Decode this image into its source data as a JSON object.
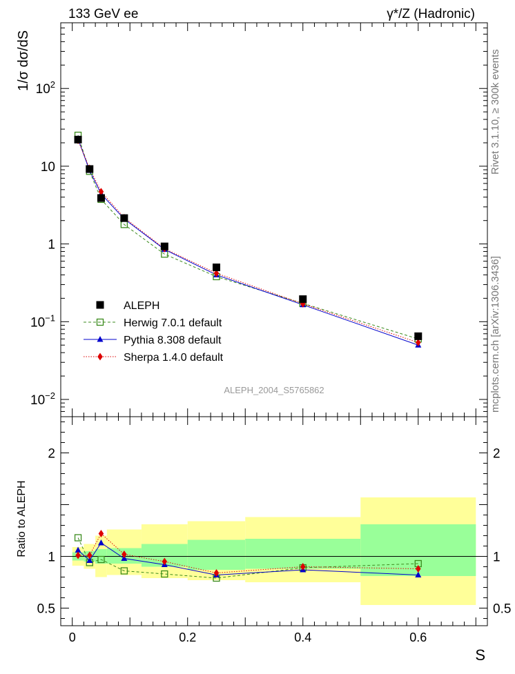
{
  "header": {
    "left": "133 GeV ee",
    "right": "γ*/Z (Hadronic)"
  },
  "side_text": {
    "rivet": "Rivet 3.1.10, ≥ 300k events",
    "mcplots": "mcplots.cern.ch [arXiv:1306.3436]"
  },
  "analysis_label": "ALEPH_2004_S5765862",
  "chart_data": [
    {
      "type": "scatter",
      "panel": "main",
      "title": "133 GeV ee",
      "ylabel": "1/σ dσ/dS",
      "xlabel": "S",
      "xlim": [
        -0.02,
        0.72
      ],
      "ylim": [
        0.006,
        700
      ],
      "yscale": "log",
      "yticks": [
        {
          "v": 100,
          "mant": "10",
          "exp": "2"
        },
        {
          "v": 10,
          "mant": "10",
          "exp": ""
        },
        {
          "v": 1,
          "mant": "1",
          "exp": ""
        },
        {
          "v": 0.1,
          "mant": "10",
          "exp": "−1"
        },
        {
          "v": 0.01,
          "mant": "10",
          "exp": "−2"
        }
      ],
      "x": [
        0.01,
        0.03,
        0.05,
        0.09,
        0.16,
        0.25,
        0.4,
        0.6
      ],
      "series": [
        {
          "name": "ALEPH",
          "color": "#000000",
          "marker": "square",
          "values": [
            22.0,
            9.2,
            3.9,
            2.15,
            0.93,
            0.5,
            0.195,
            0.065
          ]
        },
        {
          "name": "Herwig 7.0.1 default",
          "color": "#3a8a1c",
          "marker": "open-square",
          "dash": "4,3",
          "values": [
            25.0,
            8.6,
            3.75,
            1.78,
            0.74,
            0.38,
            0.172,
            0.06
          ]
        },
        {
          "name": "Pythia 8.308 default",
          "color": "#0000cc",
          "marker": "triangle",
          "dash": "",
          "values": [
            22.5,
            8.8,
            4.4,
            2.1,
            0.85,
            0.4,
            0.165,
            0.05
          ]
        },
        {
          "name": "Sherpa 1.4.0 default",
          "color": "#dd0000",
          "marker": "diamond",
          "dash": "1.5,2",
          "values": [
            21.5,
            9.4,
            4.7,
            2.18,
            0.87,
            0.42,
            0.17,
            0.054
          ]
        }
      ]
    },
    {
      "type": "scatter",
      "panel": "ratio",
      "ylabel": "Ratio to ALEPH",
      "xlabel": "S",
      "xlim": [
        -0.02,
        0.72
      ],
      "ylim": [
        0.33,
        2.35
      ],
      "yticks": [
        {
          "v": 2,
          "label": "2"
        },
        {
          "v": 1,
          "label": "1"
        },
        {
          "v": 0.5,
          "label": "0.5"
        }
      ],
      "xticks": [
        {
          "v": 0,
          "label": "0"
        },
        {
          "v": 0.2,
          "label": "0.2"
        },
        {
          "v": 0.4,
          "label": "0.4"
        },
        {
          "v": 0.6,
          "label": "0.6"
        }
      ],
      "bins": [
        {
          "lo": 0.0,
          "hi": 0.02,
          "stat": [
            0.96,
            1.04
          ],
          "total": [
            0.91,
            1.09
          ]
        },
        {
          "lo": 0.02,
          "hi": 0.04,
          "stat": [
            0.95,
            1.05
          ],
          "total": [
            0.88,
            1.12
          ]
        },
        {
          "lo": 0.04,
          "hi": 0.06,
          "stat": [
            0.93,
            1.07
          ],
          "total": [
            0.8,
            1.2
          ]
        },
        {
          "lo": 0.06,
          "hi": 0.12,
          "stat": [
            0.93,
            1.08
          ],
          "total": [
            0.82,
            1.26
          ]
        },
        {
          "lo": 0.12,
          "hi": 0.2,
          "stat": [
            0.9,
            1.12
          ],
          "total": [
            0.79,
            1.31
          ]
        },
        {
          "lo": 0.2,
          "hi": 0.3,
          "stat": [
            0.87,
            1.16
          ],
          "total": [
            0.77,
            1.34
          ]
        },
        {
          "lo": 0.3,
          "hi": 0.5,
          "stat": [
            0.88,
            1.17
          ],
          "total": [
            0.75,
            1.38
          ]
        },
        {
          "lo": 0.5,
          "hi": 0.7,
          "stat": [
            0.81,
            1.31
          ],
          "total": [
            0.53,
            1.57
          ]
        }
      ],
      "x": [
        0.01,
        0.03,
        0.05,
        0.09,
        0.16,
        0.25,
        0.4,
        0.6
      ],
      "series": [
        {
          "name": "Herwig 7.0.1 default",
          "color": "#3a8a1c",
          "marker": "open-square",
          "dash": "4,3",
          "values": [
            1.18,
            0.94,
            0.97,
            0.86,
            0.83,
            0.79,
            0.89,
            0.93
          ]
        },
        {
          "name": "Pythia 8.308 default",
          "color": "#0000cc",
          "marker": "triangle",
          "dash": "",
          "values": [
            1.06,
            0.96,
            1.13,
            0.98,
            0.92,
            0.82,
            0.87,
            0.82
          ]
        },
        {
          "name": "Sherpa 1.4.0 default",
          "color": "#dd0000",
          "marker": "diamond",
          "dash": "1.5,2",
          "values": [
            1.01,
            1.01,
            1.22,
            1.02,
            0.95,
            0.84,
            0.9,
            0.88
          ]
        }
      ]
    }
  ]
}
